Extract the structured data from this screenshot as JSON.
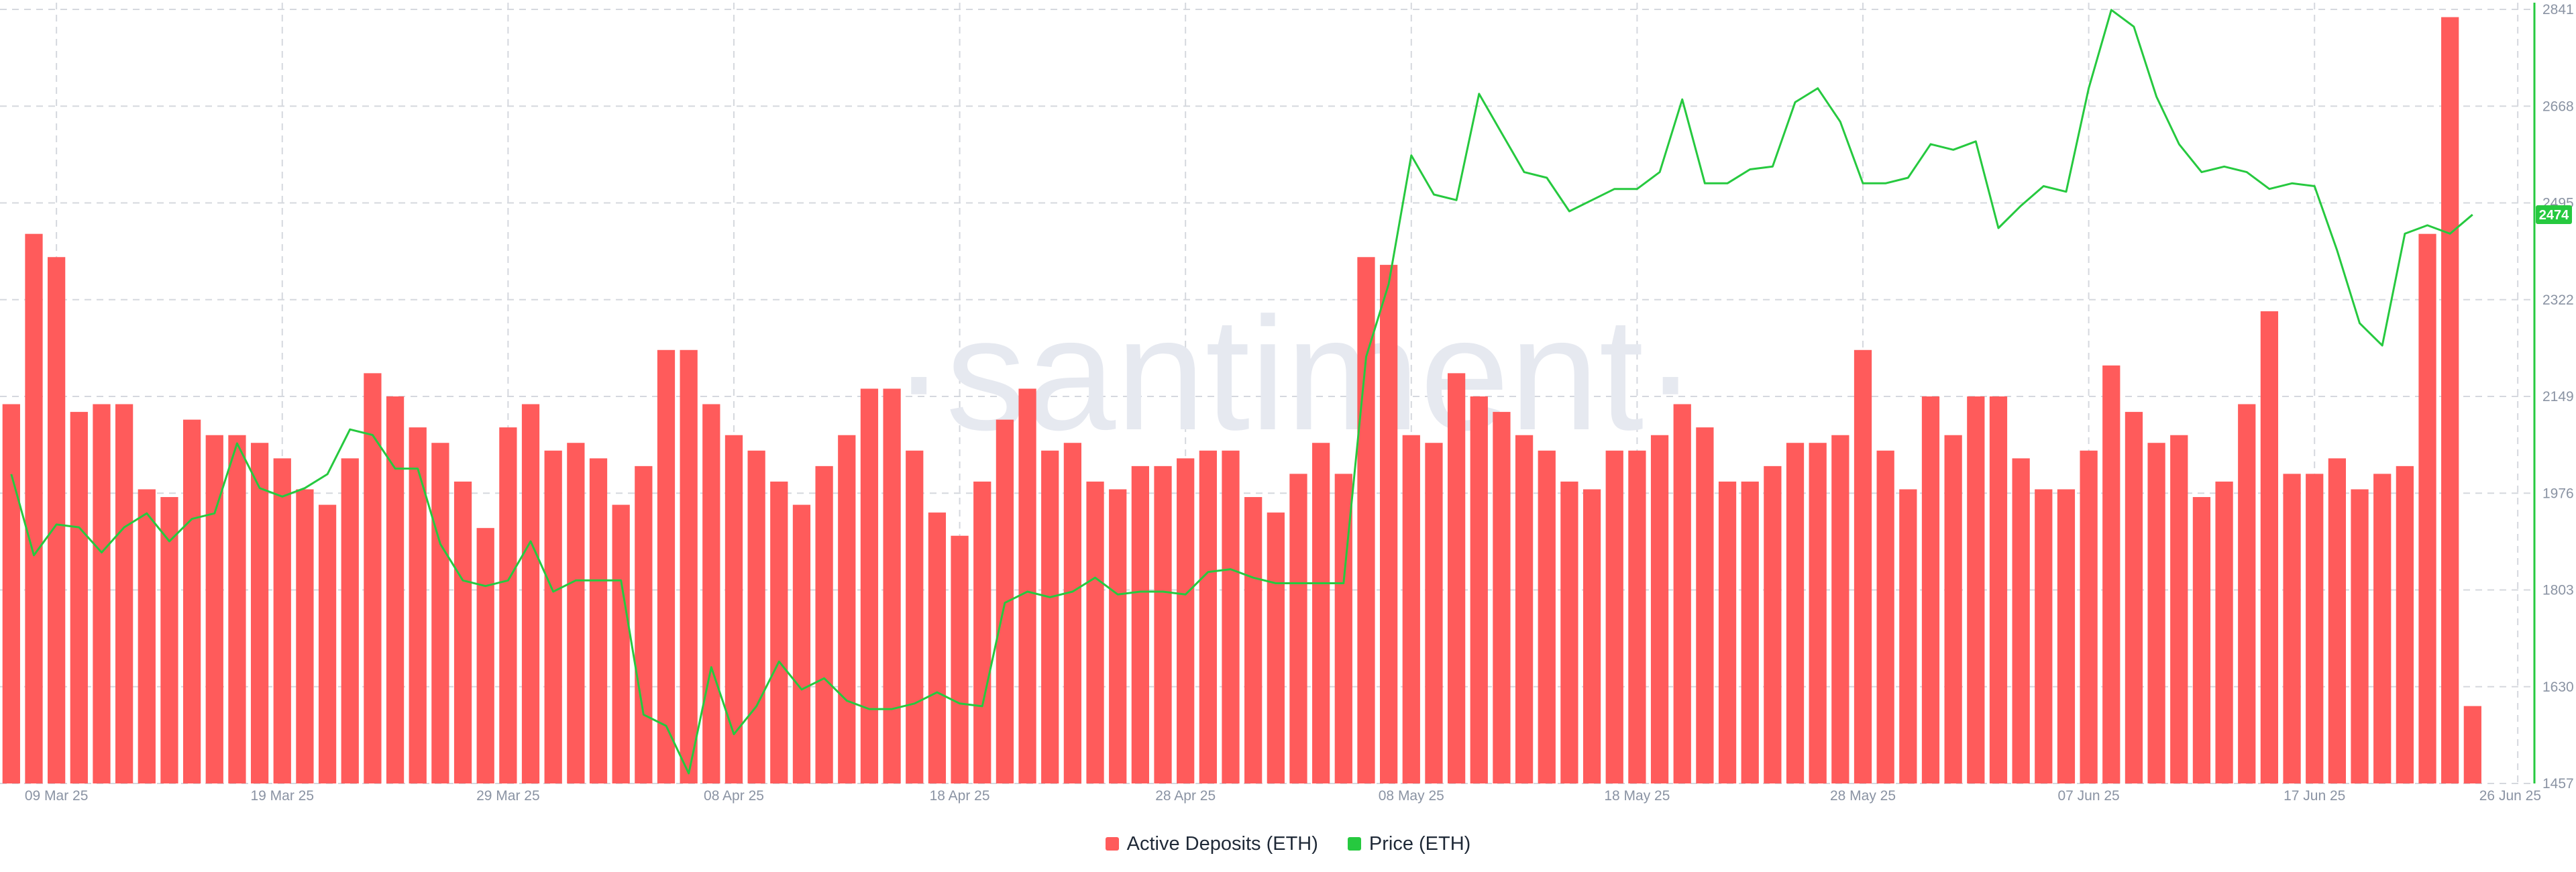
{
  "colors": {
    "deposits": "#ff5b5b",
    "price": "#26c93f",
    "grid": "#d5d8de",
    "axis_text": "#8a93a3",
    "watermark": "#e6e9f0",
    "price_tag_text": "#ffffff"
  },
  "watermark": "·santiment·",
  "legend": {
    "deposits_label": "Active Deposits (ETH)",
    "price_label": "Price (ETH)"
  },
  "chart_data": {
    "type": "bar",
    "x_start_date": "2025-03-07",
    "x_end_date": "2025-06-26",
    "x_tick_labels": [
      "09 Mar 25",
      "19 Mar 25",
      "29 Mar 25",
      "08 Apr 25",
      "18 Apr 25",
      "28 Apr 25",
      "08 May 25",
      "18 May 25",
      "28 May 25",
      "07 Jun 25",
      "17 Jun 25",
      "26 Jun 25"
    ],
    "right_axis": {
      "ticks": [
        1457,
        1630,
        1803,
        1976,
        2149,
        2322,
        2495,
        2668,
        2841
      ],
      "range": [
        1457,
        2841
      ]
    },
    "current_price_label": "2474",
    "grid": true,
    "legend_position": "bottom",
    "series": [
      {
        "name": "Active Deposits (ETH)",
        "type": "bar",
        "axis": "hidden-left",
        "y_range": [
          0,
          100
        ],
        "values": [
          49,
          71,
          68,
          48,
          49,
          49,
          38,
          37,
          47,
          45,
          45,
          44,
          42,
          38,
          36,
          42,
          53,
          50,
          46,
          44,
          39,
          33,
          46,
          49,
          43,
          44,
          42,
          36,
          41,
          56,
          56,
          49,
          45,
          43,
          39,
          36,
          41,
          45,
          51,
          51,
          43,
          35,
          32,
          39,
          47,
          51,
          43,
          44,
          39,
          38,
          41,
          41,
          42,
          43,
          43,
          37,
          35,
          40,
          44,
          40,
          68,
          67,
          45,
          44,
          53,
          50,
          48,
          45,
          43,
          39,
          38,
          43,
          43,
          45,
          49,
          46,
          39,
          39,
          41,
          44,
          44,
          45,
          56,
          43,
          38,
          50,
          45,
          50,
          50,
          42,
          38,
          38,
          43,
          54,
          48,
          44,
          45,
          37,
          39,
          49,
          61,
          40,
          40,
          42,
          38,
          40,
          41,
          71,
          99,
          10
        ]
      },
      {
        "name": "Price (ETH)",
        "type": "line",
        "axis": "right",
        "values": [
          2010,
          1865,
          1920,
          1915,
          1870,
          1915,
          1940,
          1890,
          1930,
          1940,
          2065,
          1985,
          1970,
          1985,
          2010,
          2090,
          2080,
          2020,
          2020,
          1885,
          1820,
          1810,
          1820,
          1890,
          1800,
          1820,
          1820,
          1820,
          1580,
          1560,
          1475,
          1665,
          1545,
          1595,
          1675,
          1625,
          1645,
          1605,
          1590,
          1590,
          1600,
          1620,
          1600,
          1595,
          1780,
          1800,
          1790,
          1800,
          1825,
          1795,
          1800,
          1800,
          1795,
          1835,
          1840,
          1825,
          1815,
          1815,
          1815,
          1815,
          2220,
          2350,
          2580,
          2510,
          2500,
          2690,
          2620,
          2550,
          2540,
          2480,
          2500,
          2520,
          2520,
          2550,
          2680,
          2530,
          2530,
          2555,
          2560,
          2675,
          2700,
          2640,
          2530,
          2530,
          2540,
          2600,
          2590,
          2605,
          2450,
          2490,
          2525,
          2515,
          2700,
          2840,
          2810,
          2685,
          2600,
          2550,
          2560,
          2550,
          2520,
          2530,
          2525,
          2410,
          2280,
          2240,
          2440,
          2455,
          2440,
          2474
        ]
      }
    ]
  }
}
